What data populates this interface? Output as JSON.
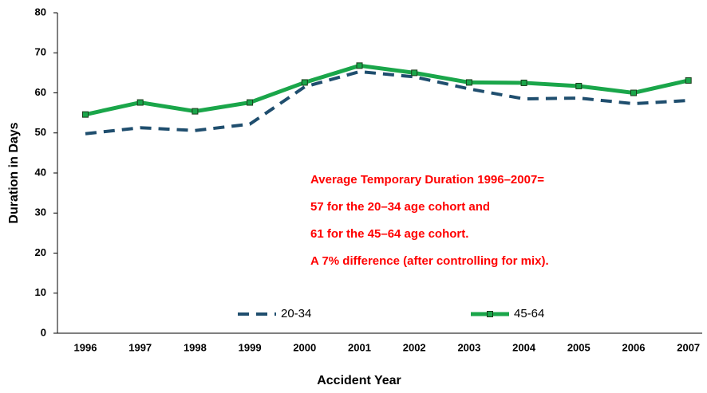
{
  "chart_data": {
    "type": "line",
    "x_label": "Accident Year",
    "y_label": "Duration in Days",
    "categories": [
      "1996",
      "1997",
      "1998",
      "1999",
      "2000",
      "2001",
      "2002",
      "2003",
      "2004",
      "2005",
      "2006",
      "2007"
    ],
    "series": [
      {
        "name": "20-34",
        "color": "#1f4e6e",
        "line_style": "dashed",
        "marker": "none",
        "values": [
          49.8,
          51.3,
          50.6,
          52.2,
          61.5,
          65.3,
          64.0,
          61.0,
          58.5,
          58.7,
          57.3,
          58.1
        ]
      },
      {
        "name": "45-64",
        "color": "#1aa64a",
        "line_style": "solid",
        "marker": "square",
        "values": [
          54.6,
          57.6,
          55.4,
          57.6,
          62.6,
          66.8,
          65.0,
          62.6,
          62.5,
          61.7,
          60.0,
          63.1
        ]
      }
    ],
    "ylim": [
      0,
      80
    ],
    "yticks": [
      0,
      10,
      20,
      30,
      40,
      50,
      60,
      70,
      80
    ],
    "grid": false,
    "legend": "bottom",
    "annotations": [
      "Average Temporary Duration 1996–2007=",
      "57 for the 20–34 age cohort and",
      "61 for the 45–64 age cohort.",
      "A 7% difference (after controlling for mix)."
    ]
  }
}
